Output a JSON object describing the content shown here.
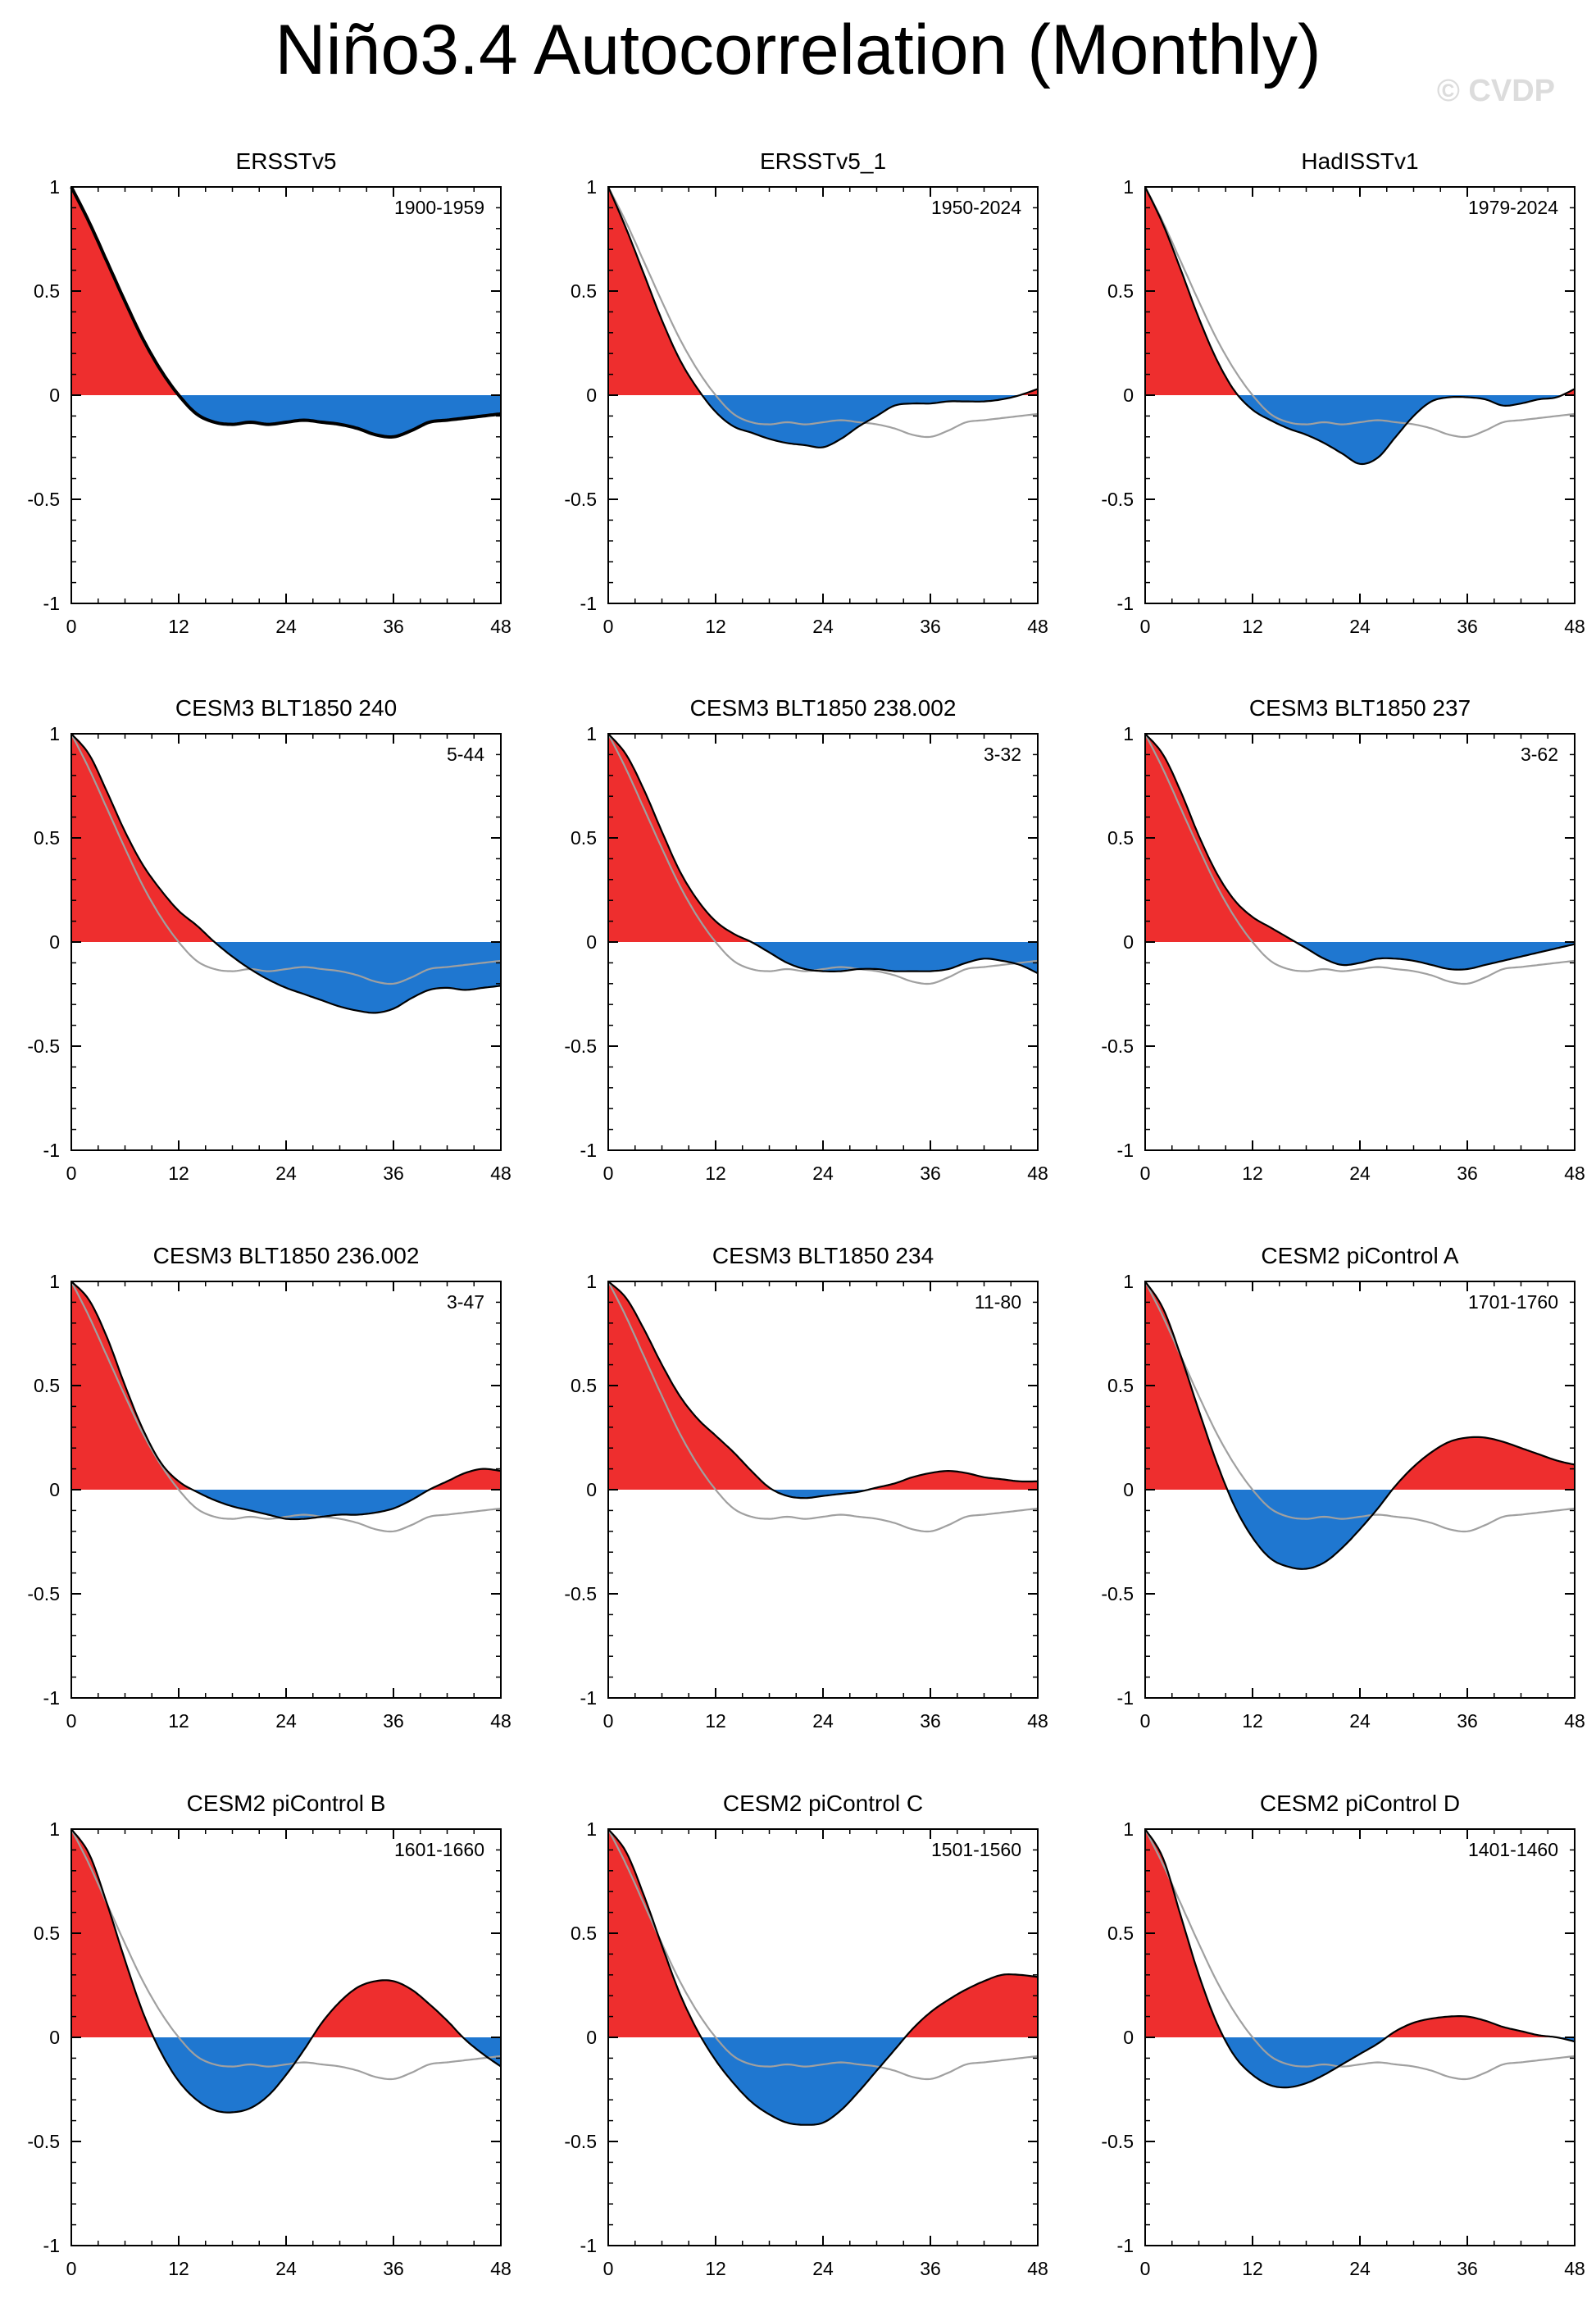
{
  "title": "Niño3.4 Autocorrelation (Monthly)",
  "watermark": "© CVDP",
  "colors": {
    "positive": "#ee2e2e",
    "negative": "#1f77d0",
    "reference": "#a0a0a0",
    "line": "#000000"
  },
  "x_ticks": [
    0,
    12,
    24,
    36,
    48
  ],
  "y_ticks": [
    1,
    0.5,
    0,
    -0.5,
    -1
  ],
  "y_tick_labels": [
    "1",
    "0.5",
    "0",
    "-0.5",
    "-1"
  ],
  "xlim": [
    0,
    48
  ],
  "ylim": [
    -1,
    1
  ],
  "reference_series": {
    "name": "ERSSTv5",
    "lags": [
      0,
      2,
      4,
      6,
      8,
      10,
      12,
      14,
      16,
      18,
      20,
      22,
      24,
      26,
      28,
      30,
      32,
      34,
      36,
      38,
      40,
      42,
      44,
      46,
      48
    ],
    "values": [
      1.0,
      0.83,
      0.64,
      0.45,
      0.27,
      0.12,
      0.0,
      -0.09,
      -0.13,
      -0.14,
      -0.13,
      -0.14,
      -0.13,
      -0.12,
      -0.13,
      -0.14,
      -0.16,
      -0.19,
      -0.2,
      -0.17,
      -0.13,
      -0.12,
      -0.11,
      -0.1,
      -0.09
    ]
  },
  "chart_data": [
    {
      "type": "area",
      "title": "ERSSTv5",
      "period": "1900-1959",
      "x": [
        0,
        2,
        4,
        6,
        8,
        10,
        12,
        14,
        16,
        18,
        20,
        22,
        24,
        26,
        28,
        30,
        32,
        34,
        36,
        38,
        40,
        42,
        44,
        46,
        48
      ],
      "y": [
        1.0,
        0.83,
        0.64,
        0.45,
        0.27,
        0.12,
        0.0,
        -0.09,
        -0.13,
        -0.14,
        -0.13,
        -0.14,
        -0.13,
        -0.12,
        -0.13,
        -0.14,
        -0.16,
        -0.19,
        -0.2,
        -0.17,
        -0.13,
        -0.12,
        -0.11,
        -0.1,
        -0.09
      ],
      "xlim": [
        0,
        48
      ],
      "ylim": [
        -1,
        1
      ]
    },
    {
      "type": "area",
      "title": "ERSSTv5_1",
      "period": "1950-2024",
      "x": [
        0,
        2,
        4,
        6,
        8,
        10,
        12,
        14,
        16,
        18,
        20,
        22,
        24,
        26,
        28,
        30,
        32,
        34,
        36,
        38,
        40,
        42,
        44,
        46,
        48
      ],
      "y": [
        1.0,
        0.8,
        0.58,
        0.36,
        0.17,
        0.03,
        -0.08,
        -0.15,
        -0.18,
        -0.21,
        -0.23,
        -0.24,
        -0.25,
        -0.21,
        -0.15,
        -0.1,
        -0.05,
        -0.04,
        -0.04,
        -0.03,
        -0.03,
        -0.03,
        -0.02,
        0.0,
        0.03
      ],
      "xlim": [
        0,
        48
      ],
      "ylim": [
        -1,
        1
      ]
    },
    {
      "type": "area",
      "title": "HadISSTv1",
      "period": "1979-2024",
      "x": [
        0,
        2,
        4,
        6,
        8,
        10,
        12,
        14,
        16,
        18,
        20,
        22,
        24,
        26,
        28,
        30,
        32,
        34,
        36,
        38,
        40,
        42,
        44,
        46,
        48
      ],
      "y": [
        1.0,
        0.82,
        0.6,
        0.37,
        0.17,
        0.02,
        -0.07,
        -0.12,
        -0.16,
        -0.19,
        -0.23,
        -0.28,
        -0.33,
        -0.3,
        -0.2,
        -0.1,
        -0.03,
        -0.01,
        -0.01,
        -0.02,
        -0.05,
        -0.04,
        -0.02,
        -0.01,
        0.03
      ],
      "xlim": [
        0,
        48
      ],
      "ylim": [
        -1,
        1
      ]
    },
    {
      "type": "area",
      "title": "CESM3 BLT1850 240",
      "period": "5-44",
      "x": [
        0,
        2,
        4,
        6,
        8,
        10,
        12,
        14,
        16,
        18,
        20,
        22,
        24,
        26,
        28,
        30,
        32,
        34,
        36,
        38,
        40,
        42,
        44,
        46,
        48
      ],
      "y": [
        1.0,
        0.9,
        0.72,
        0.53,
        0.37,
        0.25,
        0.15,
        0.08,
        0.0,
        -0.07,
        -0.13,
        -0.18,
        -0.22,
        -0.25,
        -0.28,
        -0.31,
        -0.33,
        -0.34,
        -0.32,
        -0.27,
        -0.23,
        -0.22,
        -0.23,
        -0.22,
        -0.21
      ],
      "xlim": [
        0,
        48
      ],
      "ylim": [
        -1,
        1
      ]
    },
    {
      "type": "area",
      "title": "CESM3 BLT1850 238.002",
      "period": "3-32",
      "x": [
        0,
        2,
        4,
        6,
        8,
        10,
        12,
        14,
        16,
        18,
        20,
        22,
        24,
        26,
        28,
        30,
        32,
        34,
        36,
        38,
        40,
        42,
        44,
        46,
        48
      ],
      "y": [
        1.0,
        0.9,
        0.73,
        0.53,
        0.34,
        0.2,
        0.1,
        0.04,
        0.0,
        -0.05,
        -0.1,
        -0.13,
        -0.14,
        -0.14,
        -0.13,
        -0.13,
        -0.14,
        -0.14,
        -0.14,
        -0.13,
        -0.1,
        -0.08,
        -0.09,
        -0.11,
        -0.15
      ],
      "xlim": [
        0,
        48
      ],
      "ylim": [
        -1,
        1
      ]
    },
    {
      "type": "area",
      "title": "CESM3 BLT1850 237",
      "period": "3-62",
      "x": [
        0,
        2,
        4,
        6,
        8,
        10,
        12,
        14,
        16,
        18,
        20,
        22,
        24,
        26,
        28,
        30,
        32,
        34,
        36,
        38,
        40,
        42,
        44,
        46,
        48
      ],
      "y": [
        1.0,
        0.9,
        0.72,
        0.51,
        0.33,
        0.2,
        0.12,
        0.07,
        0.02,
        -0.03,
        -0.08,
        -0.11,
        -0.1,
        -0.08,
        -0.08,
        -0.09,
        -0.11,
        -0.13,
        -0.13,
        -0.11,
        -0.09,
        -0.07,
        -0.05,
        -0.03,
        -0.01
      ],
      "xlim": [
        0,
        48
      ],
      "ylim": [
        -1,
        1
      ]
    },
    {
      "type": "area",
      "title": "CESM3 BLT1850 236.002",
      "period": "3-47",
      "x": [
        0,
        2,
        4,
        6,
        8,
        10,
        12,
        14,
        16,
        18,
        20,
        22,
        24,
        26,
        28,
        30,
        32,
        34,
        36,
        38,
        40,
        42,
        44,
        46,
        48
      ],
      "y": [
        1.0,
        0.91,
        0.73,
        0.5,
        0.29,
        0.13,
        0.04,
        -0.01,
        -0.05,
        -0.08,
        -0.1,
        -0.12,
        -0.14,
        -0.14,
        -0.13,
        -0.12,
        -0.12,
        -0.11,
        -0.09,
        -0.05,
        0.0,
        0.04,
        0.08,
        0.1,
        0.09
      ],
      "xlim": [
        0,
        48
      ],
      "ylim": [
        -1,
        1
      ]
    },
    {
      "type": "area",
      "title": "CESM3 BLT1850 234",
      "period": "11-80",
      "x": [
        0,
        2,
        4,
        6,
        8,
        10,
        12,
        14,
        16,
        18,
        20,
        22,
        24,
        26,
        28,
        30,
        32,
        34,
        36,
        38,
        40,
        42,
        44,
        46,
        48
      ],
      "y": [
        1.0,
        0.92,
        0.77,
        0.6,
        0.45,
        0.34,
        0.26,
        0.18,
        0.09,
        0.01,
        -0.03,
        -0.04,
        -0.03,
        -0.02,
        -0.01,
        0.01,
        0.03,
        0.06,
        0.08,
        0.09,
        0.08,
        0.06,
        0.05,
        0.04,
        0.04
      ],
      "xlim": [
        0,
        48
      ],
      "ylim": [
        -1,
        1
      ]
    },
    {
      "type": "area",
      "title": "CESM2 piControl A",
      "period": "1701-1760",
      "x": [
        0,
        2,
        4,
        6,
        8,
        10,
        12,
        14,
        16,
        18,
        20,
        22,
        24,
        26,
        28,
        30,
        32,
        34,
        36,
        38,
        40,
        42,
        44,
        46,
        48
      ],
      "y": [
        1.0,
        0.87,
        0.64,
        0.38,
        0.13,
        -0.08,
        -0.23,
        -0.33,
        -0.37,
        -0.38,
        -0.35,
        -0.28,
        -0.19,
        -0.09,
        0.02,
        0.11,
        0.18,
        0.23,
        0.25,
        0.25,
        0.23,
        0.2,
        0.17,
        0.14,
        0.12
      ],
      "xlim": [
        0,
        48
      ],
      "ylim": [
        -1,
        1
      ]
    },
    {
      "type": "area",
      "title": "CESM2 piControl B",
      "period": "1601-1660",
      "x": [
        0,
        2,
        4,
        6,
        8,
        10,
        12,
        14,
        16,
        18,
        20,
        22,
        24,
        26,
        28,
        30,
        32,
        34,
        36,
        38,
        40,
        42,
        44,
        46,
        48
      ],
      "y": [
        1.0,
        0.88,
        0.64,
        0.37,
        0.12,
        -0.07,
        -0.21,
        -0.3,
        -0.35,
        -0.36,
        -0.34,
        -0.28,
        -0.18,
        -0.06,
        0.07,
        0.17,
        0.24,
        0.27,
        0.27,
        0.23,
        0.16,
        0.08,
        -0.01,
        -0.08,
        -0.14
      ],
      "xlim": [
        0,
        48
      ],
      "ylim": [
        -1,
        1
      ]
    },
    {
      "type": "area",
      "title": "CESM2 piControl C",
      "period": "1501-1560",
      "x": [
        0,
        2,
        4,
        6,
        8,
        10,
        12,
        14,
        16,
        18,
        20,
        22,
        24,
        26,
        28,
        30,
        32,
        34,
        36,
        38,
        40,
        42,
        44,
        46,
        48
      ],
      "y": [
        1.0,
        0.89,
        0.68,
        0.44,
        0.21,
        0.03,
        -0.11,
        -0.22,
        -0.31,
        -0.37,
        -0.41,
        -0.42,
        -0.41,
        -0.35,
        -0.26,
        -0.16,
        -0.06,
        0.04,
        0.12,
        0.18,
        0.23,
        0.27,
        0.3,
        0.3,
        0.29
      ],
      "xlim": [
        0,
        48
      ],
      "ylim": [
        -1,
        1
      ]
    },
    {
      "type": "area",
      "title": "CESM2 piControl D",
      "period": "1401-1460",
      "x": [
        0,
        2,
        4,
        6,
        8,
        10,
        12,
        14,
        16,
        18,
        20,
        22,
        24,
        26,
        28,
        30,
        32,
        34,
        36,
        38,
        40,
        42,
        44,
        46,
        48
      ],
      "y": [
        1.0,
        0.86,
        0.58,
        0.3,
        0.07,
        -0.09,
        -0.18,
        -0.23,
        -0.24,
        -0.22,
        -0.18,
        -0.13,
        -0.08,
        -0.03,
        0.03,
        0.07,
        0.09,
        0.1,
        0.1,
        0.08,
        0.05,
        0.03,
        0.01,
        0.0,
        -0.02
      ],
      "xlim": [
        0,
        48
      ],
      "ylim": [
        -1,
        1
      ]
    }
  ]
}
